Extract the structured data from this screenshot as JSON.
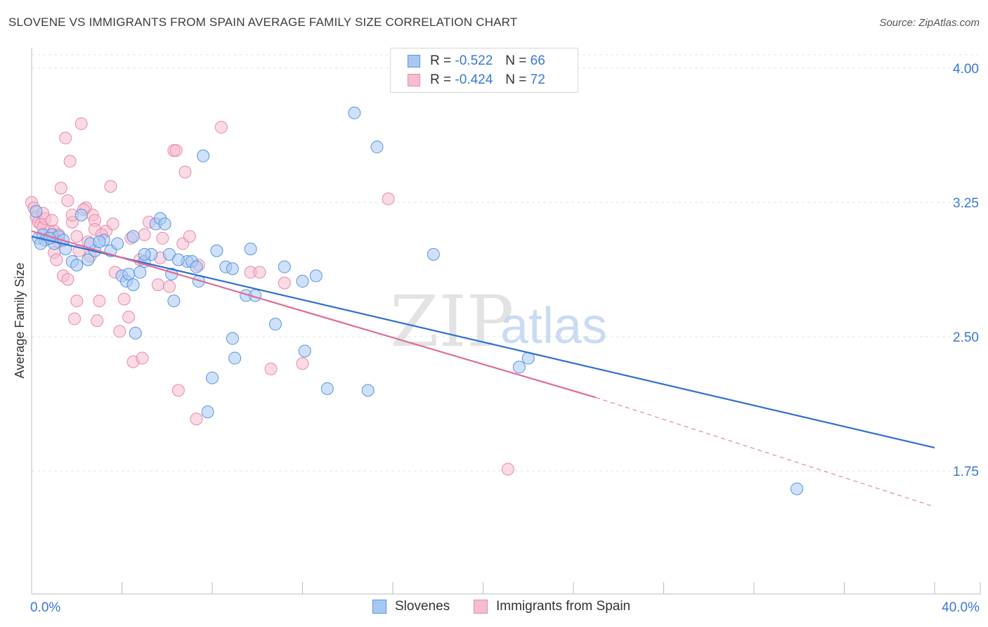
{
  "title": "SLOVENE VS IMMIGRANTS FROM SPAIN AVERAGE FAMILY SIZE CORRELATION CHART",
  "source": "Source: ZipAtlas.com",
  "watermark": {
    "zip": "ZIP",
    "atlas": "atlas"
  },
  "legend": {
    "slovenes": {
      "r_label": "R =",
      "r_value": "-0.522",
      "n_label": "N =",
      "n_value": "66"
    },
    "spain": {
      "r_label": "R =",
      "r_value": "-0.424",
      "n_label": "N =",
      "n_value": "72"
    }
  },
  "colors": {
    "slovenes_fill": "#a8c8f4",
    "slovenes_stroke": "#5b93e0",
    "slovenes_line": "#2f6fd0",
    "spain_fill": "#f6bcd0",
    "spain_stroke": "#e889a8",
    "spain_line": "#e06c97",
    "axis_label": "#3a78d4",
    "grid": "#e3e3e3"
  },
  "chart_data": {
    "type": "scatter",
    "title": "SLOVENE VS IMMIGRANTS FROM SPAIN AVERAGE FAMILY SIZE CORRELATION CHART",
    "xlabel": "",
    "ylabel": "Average Family Size",
    "xlim": [
      0,
      40
    ],
    "ylim": [
      1.0,
      4.15
    ],
    "x_tick_labels": [
      "0.0%",
      "40.0%"
    ],
    "y_ticks": [
      1.75,
      2.5,
      3.25,
      4.0
    ],
    "y_tick_labels": [
      "1.75",
      "2.50",
      "3.25",
      "4.00"
    ],
    "grid": true,
    "legend_position": "top-center",
    "series": [
      {
        "name": "Slovenes",
        "points": [
          [
            0.2,
            3.2
          ],
          [
            0.3,
            3.05
          ],
          [
            0.5,
            3.07
          ],
          [
            0.6,
            3.04
          ],
          [
            0.9,
            3.07
          ],
          [
            1.0,
            3.02
          ],
          [
            1.2,
            3.06
          ],
          [
            1.5,
            2.99
          ],
          [
            1.8,
            2.92
          ],
          [
            2.0,
            2.9
          ],
          [
            2.5,
            2.93
          ],
          [
            2.2,
            3.18
          ],
          [
            2.8,
            2.98
          ],
          [
            3.2,
            3.04
          ],
          [
            3.5,
            2.98
          ],
          [
            3.8,
            3.02
          ],
          [
            4.0,
            2.84
          ],
          [
            4.2,
            2.81
          ],
          [
            4.3,
            2.85
          ],
          [
            4.5,
            2.79
          ],
          [
            4.6,
            2.52
          ],
          [
            4.5,
            3.06
          ],
          [
            4.8,
            2.86
          ],
          [
            5.0,
            2.92
          ],
          [
            5.3,
            2.96
          ],
          [
            5.5,
            3.13
          ],
          [
            5.7,
            3.16
          ],
          [
            5.9,
            3.13
          ],
          [
            6.1,
            2.96
          ],
          [
            6.2,
            2.85
          ],
          [
            6.3,
            2.7
          ],
          [
            6.9,
            2.92
          ],
          [
            7.1,
            2.92
          ],
          [
            7.3,
            2.89
          ],
          [
            7.4,
            2.81
          ],
          [
            7.6,
            3.51
          ],
          [
            7.8,
            2.08
          ],
          [
            8.0,
            2.27
          ],
          [
            8.2,
            2.98
          ],
          [
            8.6,
            2.89
          ],
          [
            8.9,
            2.88
          ],
          [
            8.9,
            2.49
          ],
          [
            9.0,
            2.38
          ],
          [
            9.5,
            2.73
          ],
          [
            9.9,
            2.73
          ],
          [
            9.7,
            2.99
          ],
          [
            10.8,
            2.57
          ],
          [
            11.2,
            2.89
          ],
          [
            12.0,
            2.81
          ],
          [
            12.1,
            2.42
          ],
          [
            12.6,
            2.84
          ],
          [
            13.1,
            2.21
          ],
          [
            14.9,
            2.2
          ],
          [
            14.3,
            3.75
          ],
          [
            15.3,
            3.56
          ],
          [
            17.8,
            2.96
          ],
          [
            21.6,
            2.33
          ],
          [
            22.0,
            2.38
          ],
          [
            33.9,
            1.65
          ],
          [
            1.4,
            3.04
          ],
          [
            0.8,
            3.05
          ],
          [
            0.4,
            3.02
          ],
          [
            2.6,
            3.02
          ],
          [
            3.0,
            3.03
          ],
          [
            6.5,
            2.93
          ],
          [
            5.0,
            2.96
          ]
        ],
        "trend": {
          "x": [
            0.0,
            40.0
          ],
          "y": [
            3.06,
            1.88
          ]
        }
      },
      {
        "name": "Immigrants from Spain",
        "points": [
          [
            0.0,
            3.25
          ],
          [
            0.1,
            3.22
          ],
          [
            0.2,
            3.17
          ],
          [
            0.3,
            3.14
          ],
          [
            0.4,
            3.13
          ],
          [
            0.5,
            3.11
          ],
          [
            0.6,
            3.16
          ],
          [
            0.8,
            3.05
          ],
          [
            0.8,
            3.09
          ],
          [
            1.0,
            3.09
          ],
          [
            1.0,
            2.97
          ],
          [
            1.1,
            2.93
          ],
          [
            1.2,
            3.07
          ],
          [
            1.3,
            3.33
          ],
          [
            1.4,
            2.84
          ],
          [
            1.5,
            3.61
          ],
          [
            1.6,
            2.82
          ],
          [
            1.6,
            3.26
          ],
          [
            1.7,
            3.48
          ],
          [
            1.8,
            3.14
          ],
          [
            1.9,
            2.6
          ],
          [
            2.0,
            3.06
          ],
          [
            2.1,
            2.98
          ],
          [
            2.2,
            3.69
          ],
          [
            2.4,
            3.22
          ],
          [
            2.5,
            3.03
          ],
          [
            2.6,
            2.95
          ],
          [
            2.7,
            3.18
          ],
          [
            2.8,
            3.15
          ],
          [
            2.8,
            3.1
          ],
          [
            2.9,
            2.59
          ],
          [
            3.0,
            2.7
          ],
          [
            3.3,
            3.09
          ],
          [
            3.5,
            3.34
          ],
          [
            3.6,
            3.13
          ],
          [
            3.7,
            2.86
          ],
          [
            3.9,
            2.53
          ],
          [
            4.1,
            2.71
          ],
          [
            4.3,
            2.61
          ],
          [
            4.5,
            2.36
          ],
          [
            4.8,
            2.93
          ],
          [
            4.9,
            2.38
          ],
          [
            5.0,
            3.07
          ],
          [
            5.2,
            3.14
          ],
          [
            5.6,
            2.79
          ],
          [
            5.7,
            2.94
          ],
          [
            5.8,
            3.05
          ],
          [
            6.1,
            2.78
          ],
          [
            6.3,
            3.54
          ],
          [
            6.4,
            3.54
          ],
          [
            6.5,
            2.2
          ],
          [
            6.7,
            3.02
          ],
          [
            6.8,
            3.42
          ],
          [
            7.0,
            3.06
          ],
          [
            7.3,
            2.04
          ],
          [
            7.4,
            2.9
          ],
          [
            8.4,
            3.67
          ],
          [
            9.7,
            2.86
          ],
          [
            10.1,
            2.86
          ],
          [
            10.6,
            2.32
          ],
          [
            11.2,
            2.8
          ],
          [
            12.0,
            2.35
          ],
          [
            15.8,
            3.27
          ],
          [
            21.1,
            1.76
          ],
          [
            1.2,
            3.03
          ],
          [
            0.9,
            3.15
          ],
          [
            0.5,
            3.19
          ],
          [
            1.8,
            3.18
          ],
          [
            2.3,
            3.21
          ],
          [
            3.1,
            3.07
          ],
          [
            4.4,
            3.05
          ],
          [
            2.0,
            2.7
          ]
        ],
        "trend": {
          "x": [
            0.0,
            25.0
          ],
          "y": [
            3.09,
            2.16
          ]
        },
        "trend_dashed": {
          "x": [
            25.0,
            40.0
          ],
          "y": [
            2.16,
            1.55
          ]
        }
      }
    ]
  },
  "bottom_legend": {
    "slovenes": "Slovenes",
    "spain": "Immigrants from Spain"
  }
}
